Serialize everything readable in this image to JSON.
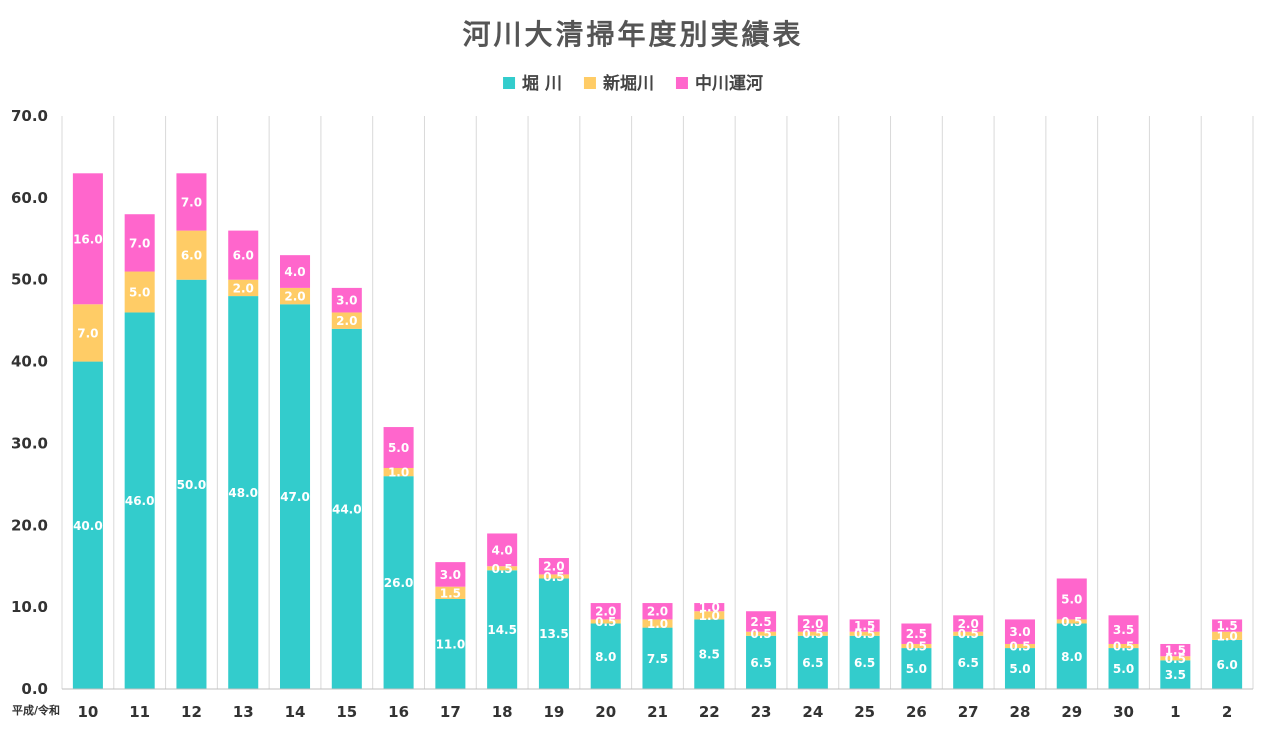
{
  "chart_data": {
    "type": "bar",
    "stacked": true,
    "title": "河川大清掃年度別実績表",
    "x_caption": "平成/令和",
    "categories": [
      "10",
      "11",
      "12",
      "13",
      "14",
      "15",
      "16",
      "17",
      "18",
      "19",
      "20",
      "21",
      "22",
      "23",
      "24",
      "25",
      "26",
      "27",
      "28",
      "29",
      "30",
      "1",
      "2"
    ],
    "series": [
      {
        "name": "堀 川",
        "color": "#33CCCC",
        "values": [
          40,
          46,
          50,
          48,
          47,
          44,
          26,
          11,
          14.5,
          13.5,
          8,
          7.5,
          8.5,
          6.5,
          6.5,
          6.5,
          5,
          6.5,
          5,
          8,
          5,
          3.5,
          6
        ]
      },
      {
        "name": "新堀川",
        "color": "#FFCC66",
        "values": [
          7,
          5,
          6,
          2,
          2,
          2,
          1,
          1.5,
          0.5,
          0.5,
          0.5,
          1,
          1,
          0.5,
          0.5,
          0.5,
          0.5,
          0.5,
          0.5,
          0.5,
          0.5,
          0.5,
          1
        ]
      },
      {
        "name": "中川運河",
        "color": "#FF66CC",
        "values": [
          16,
          7,
          7,
          6,
          4,
          3,
          5,
          3,
          4,
          2,
          2,
          2,
          1,
          2.5,
          2,
          1.5,
          2.5,
          2,
          3,
          5,
          3.5,
          1.5,
          1.5
        ]
      }
    ],
    "ylim": [
      0,
      70
    ],
    "yticks": [
      "0.0",
      "10.0",
      "20.0",
      "30.0",
      "40.0",
      "50.0",
      "60.0",
      "70.0"
    ],
    "legend_position": "top",
    "grid": "vertical"
  }
}
